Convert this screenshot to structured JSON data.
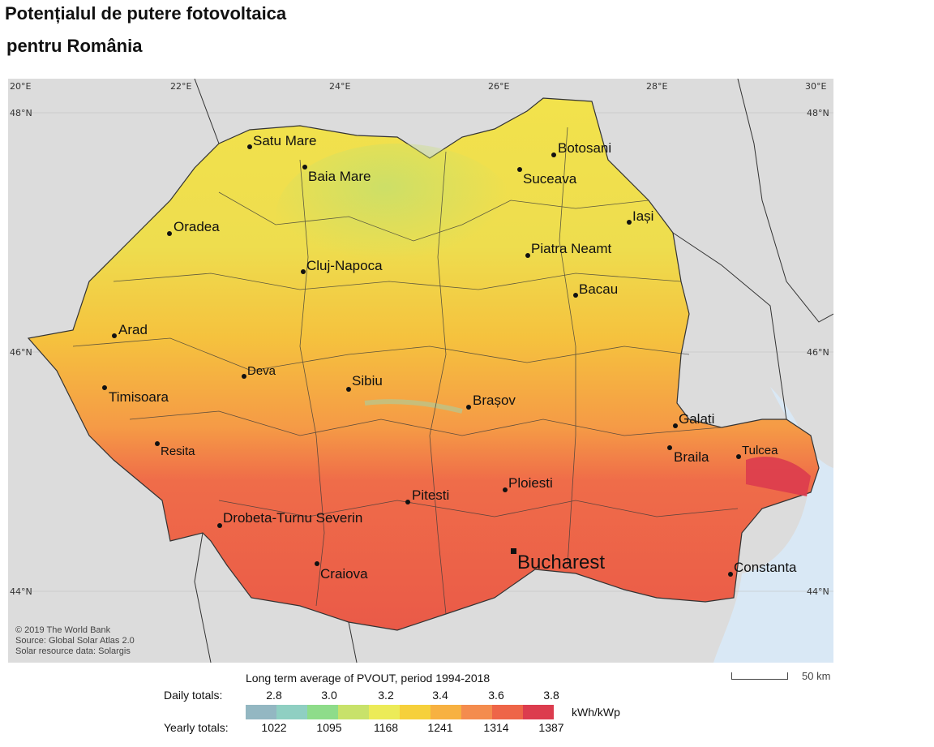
{
  "title": {
    "line1": "Potențialul de putere fotovoltaica",
    "line2": "pentru România"
  },
  "map": {
    "colors": {
      "sea": "#d9e8f5",
      "land_outside": "#dcdcdc",
      "border": "#333333"
    },
    "lon_labels": [
      "20°E",
      "22°E",
      "24°E",
      "26°E",
      "28°E",
      "30°E"
    ],
    "lat_labels": [
      "48°N",
      "46°N",
      "44°N"
    ],
    "cities": [
      {
        "name": "Satu Mare"
      },
      {
        "name": "Baia Mare"
      },
      {
        "name": "Botosani"
      },
      {
        "name": "Suceava"
      },
      {
        "name": "Iași"
      },
      {
        "name": "Oradea"
      },
      {
        "name": "Piatra Neamt"
      },
      {
        "name": "Cluj-Napoca"
      },
      {
        "name": "Bacau"
      },
      {
        "name": "Arad"
      },
      {
        "name": "Deva"
      },
      {
        "name": "Sibiu"
      },
      {
        "name": "Timisoara"
      },
      {
        "name": "Brașov"
      },
      {
        "name": "Galati"
      },
      {
        "name": "Resita"
      },
      {
        "name": "Braila"
      },
      {
        "name": "Tulcea"
      },
      {
        "name": "Ploiesti"
      },
      {
        "name": "Pitesti"
      },
      {
        "name": "Drobeta-Turnu Severin"
      },
      {
        "name": "Bucharest"
      },
      {
        "name": "Constanta"
      },
      {
        "name": "Craiova"
      }
    ],
    "credits": [
      "© 2019 The World Bank",
      "Source: Global Solar Atlas 2.0",
      "Solar resource data: Solargis"
    ],
    "scale_label": "50 km"
  },
  "legend": {
    "title": "Long term average of PVOUT, period 1994-2018",
    "daily_label": "Daily totals:",
    "yearly_label": "Yearly totals:",
    "unit": "kWh/kWp",
    "daily_ticks": [
      "2.8",
      "3.0",
      "3.2",
      "3.4",
      "3.6",
      "3.8"
    ],
    "yearly_ticks": [
      "1022",
      "1095",
      "1168",
      "1241",
      "1314",
      "1387"
    ],
    "colors": [
      "#93b7c2",
      "#8fcfc2",
      "#8edc8a",
      "#c8e26a",
      "#eceb58",
      "#f6d03b",
      "#f7b141",
      "#f48c4e",
      "#ee6548",
      "#dc3c4e"
    ]
  }
}
